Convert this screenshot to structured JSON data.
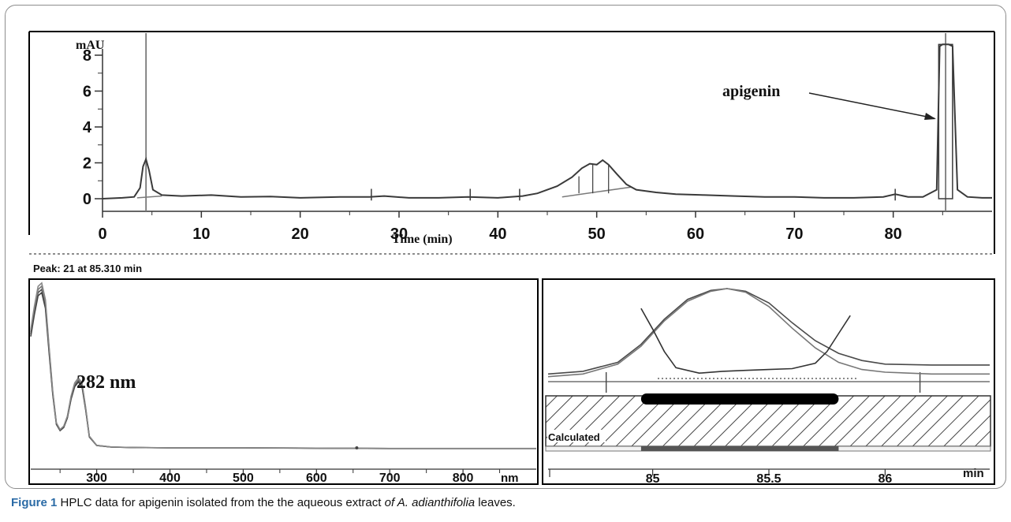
{
  "caption": {
    "figure_label": "Figure 1",
    "text_before_italic": " HPLC data for apigenin isolated from the the aqueous extract ",
    "italic_text": "of A. adianthifolia",
    "text_after_italic": " leaves."
  },
  "peak_info": "Peak: 21 at 85.310 min",
  "colors": {
    "trace": "#3a3a3a",
    "trace_light": "#7a7a7a",
    "frame": "#000000"
  },
  "chart_data": [
    {
      "type": "line",
      "ylabel": "mAU",
      "xlabel": "Time (min)",
      "xlim": [
        0,
        90
      ],
      "ylim": [
        -1.2,
        9.2
      ],
      "xticks": [
        0,
        10,
        20,
        30,
        40,
        50,
        60,
        70,
        80
      ],
      "yticks": [
        0,
        2,
        4,
        6,
        8
      ],
      "annotation": {
        "text": "apigenin",
        "target_x": 85.3
      },
      "series": [
        {
          "x": [
            0,
            2,
            3.2,
            3.8,
            4.1,
            4.4,
            4.7,
            5.1,
            6,
            8,
            11,
            14,
            17,
            20,
            24,
            27,
            28.5,
            31,
            34,
            37,
            40,
            42.5,
            44,
            46,
            47.5,
            48.5,
            49.3,
            50,
            50.6,
            51.2,
            52,
            53,
            54,
            56,
            58,
            61,
            64,
            67,
            70,
            73,
            76,
            79,
            80.2,
            81.5,
            83,
            84.4,
            84.7,
            85.0,
            85.6,
            86.0,
            86.5,
            87.5,
            89,
            90
          ],
          "y": [
            0,
            0.05,
            0.1,
            0.6,
            1.8,
            2.2,
            1.6,
            0.5,
            0.2,
            0.15,
            0.2,
            0.1,
            0.12,
            0.05,
            0.1,
            0.1,
            0.15,
            0.05,
            0.05,
            0.1,
            0.05,
            0.15,
            0.3,
            0.7,
            1.2,
            1.7,
            1.95,
            1.9,
            2.15,
            1.9,
            1.4,
            0.8,
            0.5,
            0.35,
            0.25,
            0.2,
            0.15,
            0.1,
            0.1,
            0.05,
            0.05,
            0.1,
            0.25,
            0.1,
            0.1,
            0.5,
            8.5,
            8.6,
            8.6,
            8.5,
            0.5,
            0.1,
            0.05,
            0.05
          ]
        }
      ]
    },
    {
      "type": "line",
      "xlabel": "nm",
      "xlim": [
        210,
        900
      ],
      "ylim": [
        0,
        1.05
      ],
      "xticks": [
        300,
        400,
        500,
        600,
        700,
        800
      ],
      "annotation": {
        "text": "282 nm",
        "target_x": 282
      },
      "series": [
        {
          "x": [
            210,
            215,
            220,
            225,
            230,
            235,
            240,
            245,
            250,
            255,
            260,
            265,
            270,
            275,
            280,
            285,
            290,
            300,
            320,
            350,
            400,
            500,
            600,
            700,
            800,
            900
          ],
          "y": [
            0.72,
            0.86,
            0.98,
            1.0,
            0.9,
            0.62,
            0.35,
            0.16,
            0.12,
            0.14,
            0.2,
            0.32,
            0.4,
            0.43,
            0.4,
            0.25,
            0.08,
            0.025,
            0.015,
            0.012,
            0.01,
            0.01,
            0.008,
            0.006,
            0.006,
            0.006
          ]
        }
      ]
    },
    {
      "type": "line",
      "xlabel": "min",
      "xlim": [
        84.55,
        86.45
      ],
      "ylim": [
        0,
        1
      ],
      "xticks": [
        85,
        85.5,
        86
      ],
      "calculated_label": "Calculated",
      "series": [
        {
          "x": [
            84.55,
            84.7,
            84.85,
            84.95,
            85.05,
            85.15,
            85.25,
            85.32,
            85.4,
            85.5,
            85.6,
            85.7,
            85.8,
            85.9,
            86.0,
            86.2,
            86.45
          ],
          "y": [
            0.05,
            0.08,
            0.18,
            0.38,
            0.66,
            0.88,
            0.98,
            1.0,
            0.97,
            0.84,
            0.62,
            0.42,
            0.28,
            0.2,
            0.16,
            0.15,
            0.15
          ]
        },
        {
          "x": [
            84.55,
            84.7,
            84.85,
            84.95,
            85.05,
            85.15,
            85.25,
            85.32,
            85.4,
            85.5,
            85.6,
            85.7,
            85.8,
            85.9,
            86.0,
            86.2,
            86.45
          ],
          "y": [
            0.02,
            0.05,
            0.16,
            0.36,
            0.64,
            0.86,
            0.97,
            1.0,
            0.96,
            0.8,
            0.56,
            0.34,
            0.18,
            0.1,
            0.07,
            0.05,
            0.05
          ]
        },
        {
          "x": [
            84.95,
            85.0,
            85.05,
            85.1,
            85.2,
            85.3,
            85.4,
            85.5,
            85.6,
            85.7,
            85.75,
            85.8,
            85.85
          ],
          "y": [
            0.78,
            0.55,
            0.3,
            0.12,
            0.06,
            0.08,
            0.09,
            0.1,
            0.11,
            0.17,
            0.3,
            0.5,
            0.7
          ]
        }
      ]
    }
  ]
}
